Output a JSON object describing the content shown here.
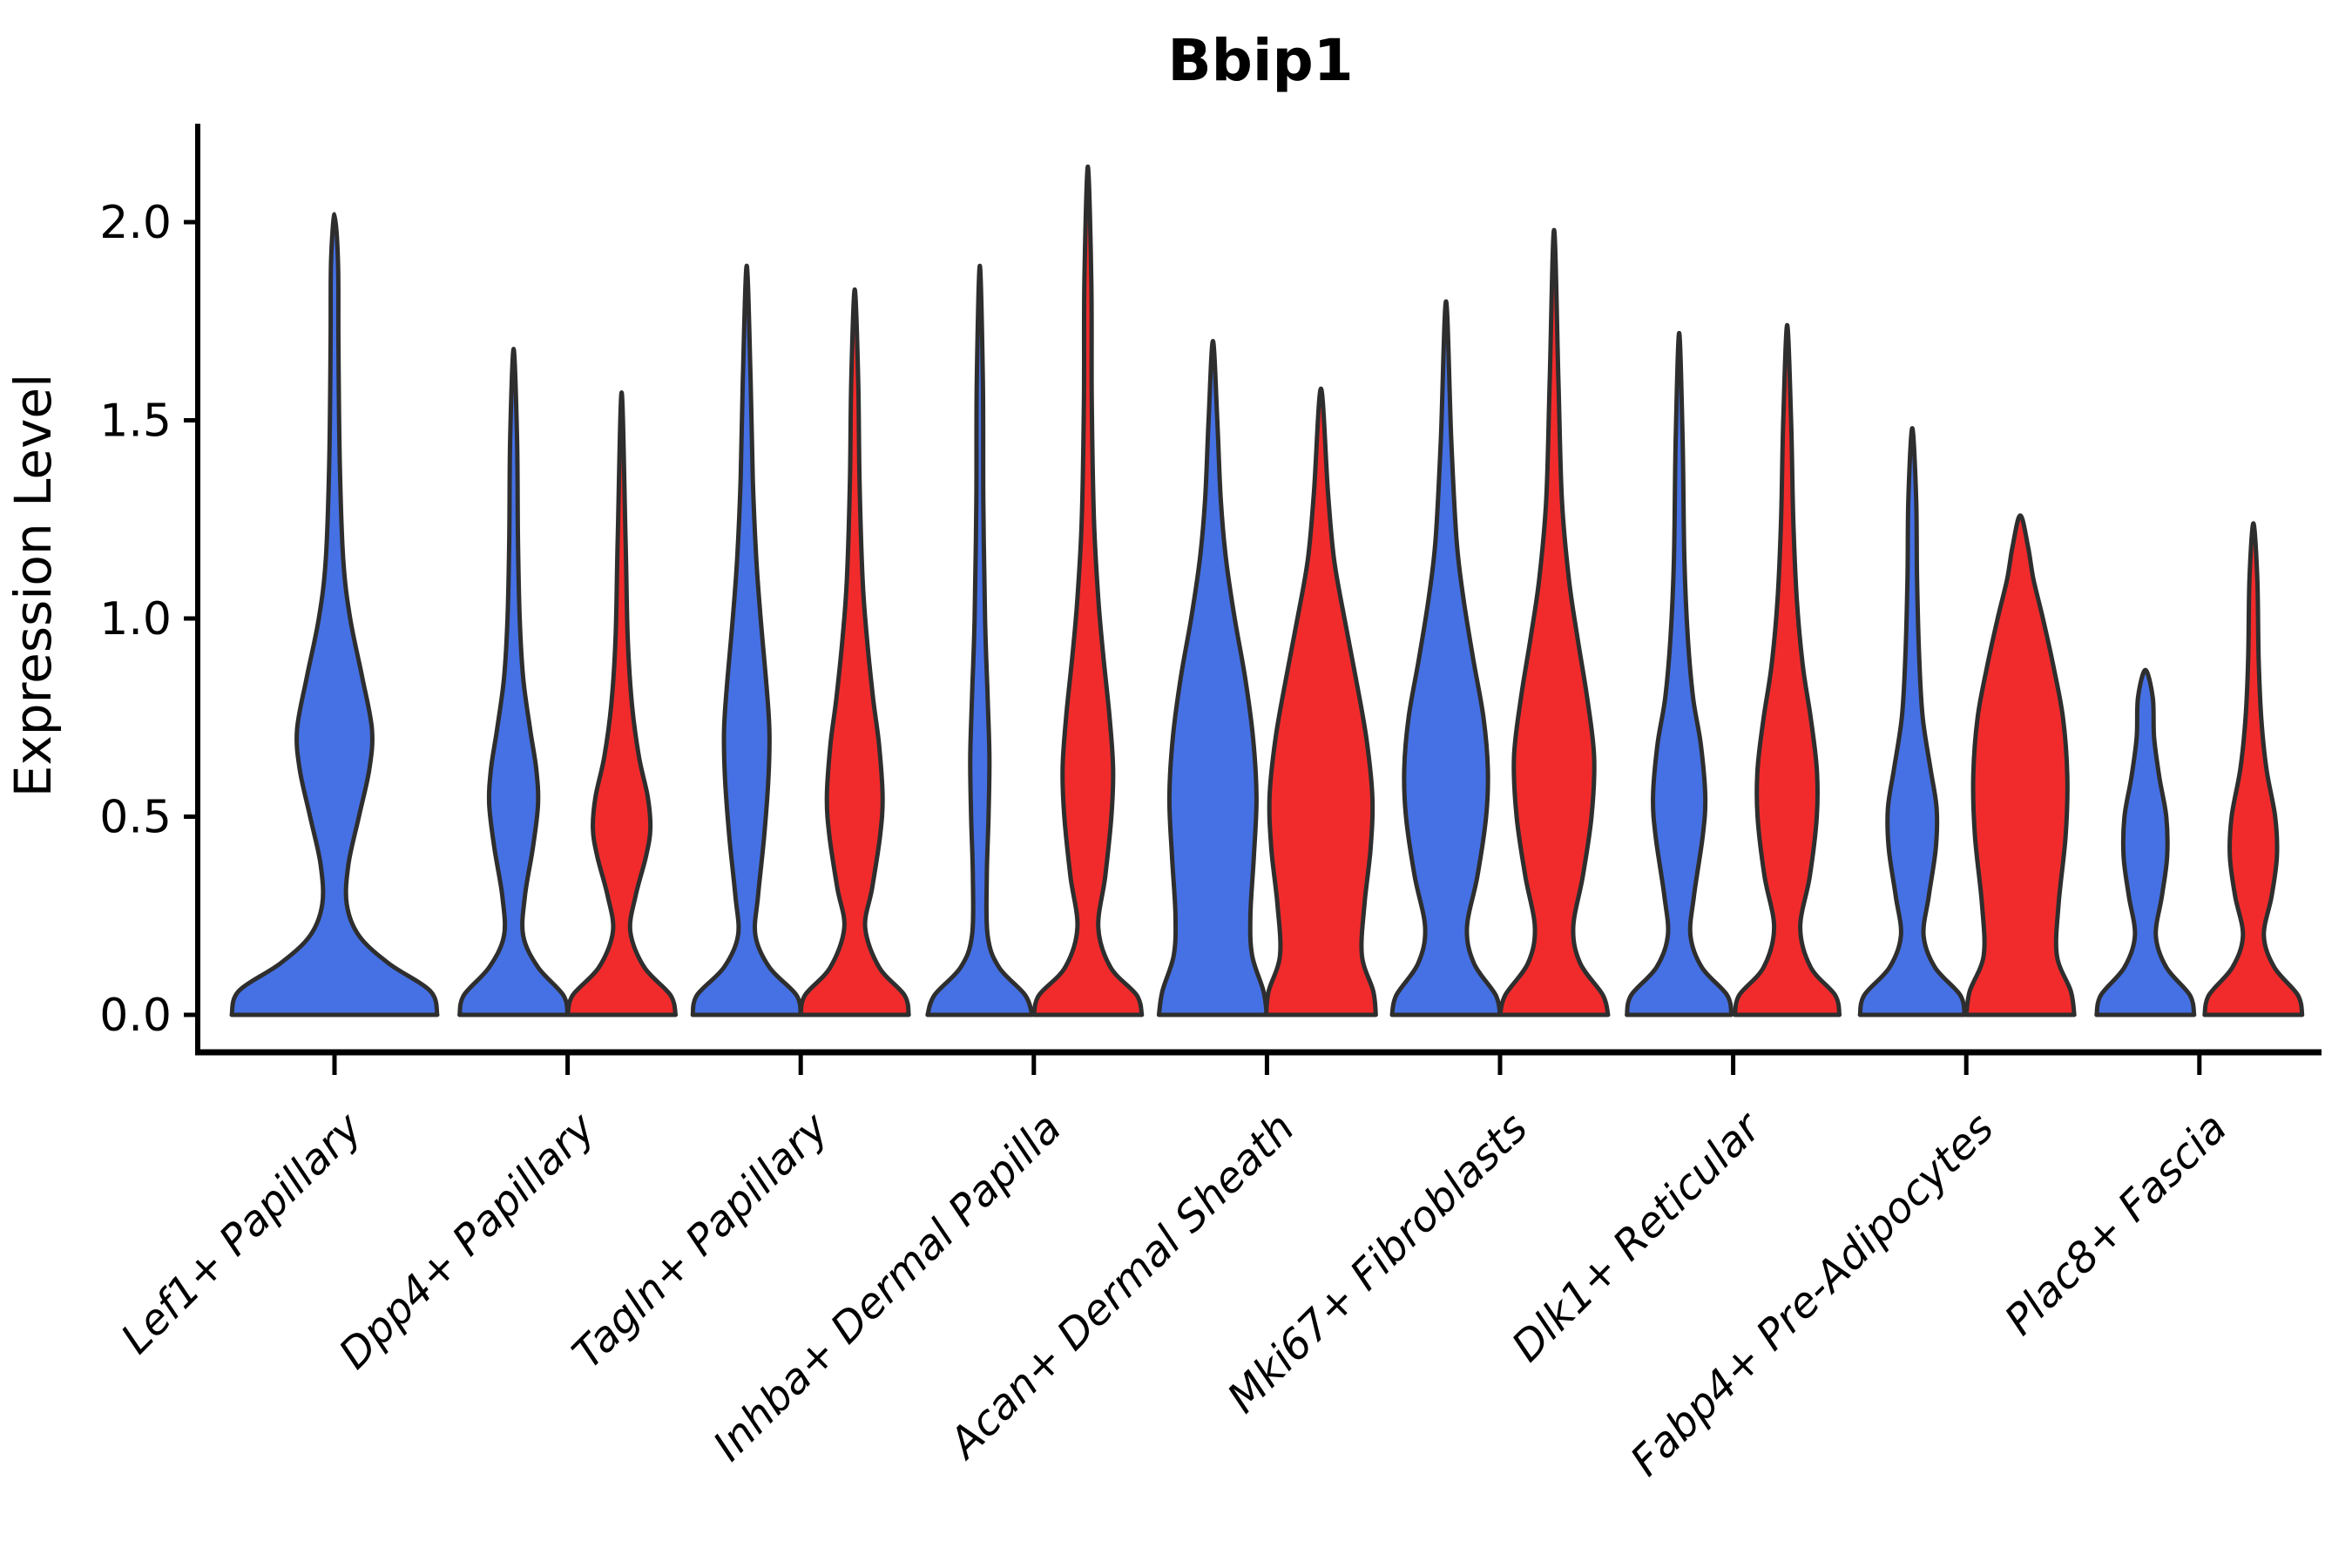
{
  "title": "Bbip1",
  "axes": {
    "ylabel": "Expression Level",
    "ytick_labels": [
      "0.0",
      "0.5",
      "1.0",
      "1.5",
      "2.0"
    ]
  },
  "chart_data": {
    "type": "violin",
    "title": "Bbip1",
    "xlabel": "",
    "ylabel": "Expression Level",
    "ylim": [
      -0.09,
      2.25
    ],
    "yticks": [
      0.0,
      0.5,
      1.0,
      1.5,
      2.0
    ],
    "grid": false,
    "legend": "none (colors encode two sample groups: blue vs red)",
    "categories": [
      "Lef1+ Papillary",
      "Dpp4+ Papillary",
      "Tagln+ Papillary",
      "Inhba+ Dermal Papilla",
      "Acan+ Dermal Sheath",
      "Mki67+ Fibroblasts",
      "Dlk1+ Reticular",
      "Fabp4+ Pre-Adipocytes",
      "Plac8+ Fascia"
    ],
    "series_colors": {
      "blue": "#4671e4",
      "red": "#f12b2c"
    },
    "outline_color": "#2e2e2e",
    "groups": [
      {
        "category": "Lef1+ Papillary",
        "violins": [
          {
            "series": "blue",
            "peak": 2.02,
            "profile": [
              [
                0,
                118
              ],
              [
                0.06,
                110
              ],
              [
                0.13,
                62
              ],
              [
                0.2,
                28
              ],
              [
                0.28,
                14
              ],
              [
                0.38,
                16
              ],
              [
                0.5,
                28
              ],
              [
                0.62,
                40
              ],
              [
                0.72,
                43
              ],
              [
                0.85,
                32
              ],
              [
                1.0,
                18
              ],
              [
                1.15,
                10
              ],
              [
                1.4,
                6
              ],
              [
                1.7,
                4.5
              ],
              [
                1.9,
                4
              ],
              [
                2.02,
                0
              ]
            ]
          }
        ]
      },
      {
        "category": "Dpp4+ Papillary",
        "violins": [
          {
            "series": "blue",
            "peak": 1.68,
            "profile": [
              [
                0,
                62
              ],
              [
                0.05,
                57
              ],
              [
                0.12,
                28
              ],
              [
                0.2,
                11
              ],
              [
                0.3,
                13
              ],
              [
                0.42,
                22
              ],
              [
                0.53,
                28
              ],
              [
                0.62,
                26
              ],
              [
                0.72,
                19
              ],
              [
                0.85,
                11
              ],
              [
                1.0,
                7
              ],
              [
                1.2,
                5
              ],
              [
                1.45,
                4
              ],
              [
                1.68,
                0
              ]
            ]
          },
          {
            "series": "red",
            "peak": 1.57,
            "profile": [
              [
                0,
                62
              ],
              [
                0.05,
                56
              ],
              [
                0.12,
                26
              ],
              [
                0.21,
                10
              ],
              [
                0.3,
                16
              ],
              [
                0.4,
                28
              ],
              [
                0.47,
                33
              ],
              [
                0.55,
                30
              ],
              [
                0.65,
                20
              ],
              [
                0.78,
                12
              ],
              [
                0.95,
                7
              ],
              [
                1.2,
                4.5
              ],
              [
                1.57,
                0
              ]
            ]
          }
        ]
      },
      {
        "category": "Tagln+ Papillary",
        "violins": [
          {
            "series": "blue",
            "peak": 1.89,
            "profile": [
              [
                0,
                62
              ],
              [
                0.05,
                57
              ],
              [
                0.12,
                26
              ],
              [
                0.2,
                10
              ],
              [
                0.3,
                13
              ],
              [
                0.45,
                20
              ],
              [
                0.6,
                25
              ],
              [
                0.72,
                26
              ],
              [
                0.85,
                22
              ],
              [
                1.0,
                16
              ],
              [
                1.15,
                11
              ],
              [
                1.35,
                7
              ],
              [
                1.6,
                4.5
              ],
              [
                1.89,
                0
              ]
            ]
          },
          {
            "series": "red",
            "peak": 1.83,
            "profile": [
              [
                0,
                62
              ],
              [
                0.05,
                57
              ],
              [
                0.12,
                28
              ],
              [
                0.22,
                12
              ],
              [
                0.32,
                20
              ],
              [
                0.45,
                29
              ],
              [
                0.55,
                32
              ],
              [
                0.68,
                28
              ],
              [
                0.8,
                21
              ],
              [
                0.95,
                14
              ],
              [
                1.1,
                9
              ],
              [
                1.35,
                5.5
              ],
              [
                1.6,
                4
              ],
              [
                1.83,
                0
              ]
            ]
          }
        ]
      },
      {
        "category": "Inhba+ Dermal Papilla",
        "violins": [
          {
            "series": "blue",
            "peak": 1.89,
            "profile": [
              [
                0,
                60
              ],
              [
                0.05,
                52
              ],
              [
                0.12,
                22
              ],
              [
                0.2,
                9
              ],
              [
                0.35,
                8
              ],
              [
                0.5,
                10
              ],
              [
                0.65,
                11
              ],
              [
                0.8,
                9
              ],
              [
                1.0,
                6
              ],
              [
                1.3,
                4
              ],
              [
                1.6,
                3.5
              ],
              [
                1.89,
                0
              ]
            ]
          },
          {
            "series": "red",
            "peak": 2.14,
            "profile": [
              [
                0,
                62
              ],
              [
                0.05,
                56
              ],
              [
                0.12,
                26
              ],
              [
                0.22,
                12
              ],
              [
                0.35,
                20
              ],
              [
                0.5,
                27
              ],
              [
                0.62,
                29
              ],
              [
                0.75,
                25
              ],
              [
                0.9,
                18
              ],
              [
                1.05,
                12
              ],
              [
                1.25,
                7
              ],
              [
                1.55,
                4.5
              ],
              [
                1.85,
                4
              ],
              [
                2.14,
                0
              ]
            ]
          }
        ]
      },
      {
        "category": "Acan+ Dermal Sheath",
        "violins": [
          {
            "series": "blue",
            "peak": 1.7,
            "profile": [
              [
                0,
                62
              ],
              [
                0.06,
                58
              ],
              [
                0.15,
                45
              ],
              [
                0.25,
                43
              ],
              [
                0.4,
                47
              ],
              [
                0.55,
                50
              ],
              [
                0.7,
                46
              ],
              [
                0.85,
                37
              ],
              [
                1.0,
                25
              ],
              [
                1.15,
                15
              ],
              [
                1.3,
                9
              ],
              [
                1.5,
                5
              ],
              [
                1.7,
                0
              ]
            ]
          },
          {
            "series": "red",
            "peak": 1.58,
            "profile": [
              [
                0,
                63
              ],
              [
                0.06,
                60
              ],
              [
                0.15,
                47
              ],
              [
                0.28,
                50
              ],
              [
                0.42,
                57
              ],
              [
                0.55,
                59
              ],
              [
                0.7,
                52
              ],
              [
                0.85,
                40
              ],
              [
                1.0,
                27
              ],
              [
                1.15,
                15
              ],
              [
                1.32,
                8
              ],
              [
                1.58,
                0
              ]
            ]
          }
        ]
      },
      {
        "category": "Mki67+ Fibroblasts",
        "violins": [
          {
            "series": "blue",
            "peak": 1.8,
            "profile": [
              [
                0,
                62
              ],
              [
                0.05,
                57
              ],
              [
                0.13,
                32
              ],
              [
                0.22,
                24
              ],
              [
                0.35,
                36
              ],
              [
                0.5,
                46
              ],
              [
                0.62,
                48
              ],
              [
                0.75,
                43
              ],
              [
                0.9,
                31
              ],
              [
                1.05,
                20
              ],
              [
                1.2,
                12
              ],
              [
                1.45,
                6
              ],
              [
                1.8,
                0
              ]
            ]
          },
          {
            "series": "red",
            "peak": 1.98,
            "profile": [
              [
                0,
                62
              ],
              [
                0.05,
                56
              ],
              [
                0.13,
                30
              ],
              [
                0.22,
                22
              ],
              [
                0.35,
                33
              ],
              [
                0.5,
                43
              ],
              [
                0.65,
                46
              ],
              [
                0.8,
                38
              ],
              [
                0.95,
                27
              ],
              [
                1.1,
                17
              ],
              [
                1.3,
                9
              ],
              [
                1.6,
                5
              ],
              [
                1.98,
                0
              ]
            ]
          }
        ]
      },
      {
        "category": "Dlk1+ Reticular",
        "violins": [
          {
            "series": "blue",
            "peak": 1.72,
            "profile": [
              [
                0,
                60
              ],
              [
                0.05,
                55
              ],
              [
                0.12,
                26
              ],
              [
                0.2,
                13
              ],
              [
                0.3,
                17
              ],
              [
                0.45,
                27
              ],
              [
                0.55,
                30
              ],
              [
                0.68,
                25
              ],
              [
                0.8,
                16
              ],
              [
                0.95,
                10
              ],
              [
                1.15,
                6
              ],
              [
                1.45,
                4
              ],
              [
                1.72,
                0
              ]
            ]
          },
          {
            "series": "red",
            "peak": 1.74,
            "profile": [
              [
                0,
                60
              ],
              [
                0.05,
                55
              ],
              [
                0.12,
                27
              ],
              [
                0.22,
                15
              ],
              [
                0.35,
                26
              ],
              [
                0.5,
                34
              ],
              [
                0.62,
                34
              ],
              [
                0.75,
                27
              ],
              [
                0.88,
                18
              ],
              [
                1.05,
                11
              ],
              [
                1.25,
                7
              ],
              [
                1.5,
                4.5
              ],
              [
                1.74,
                0
              ]
            ]
          }
        ]
      },
      {
        "category": "Fabp4+ Pre-Adipocytes",
        "violins": [
          {
            "series": "blue",
            "peak": 1.48,
            "profile": [
              [
                0,
                60
              ],
              [
                0.05,
                55
              ],
              [
                0.12,
                26
              ],
              [
                0.2,
                13
              ],
              [
                0.3,
                19
              ],
              [
                0.42,
                27
              ],
              [
                0.52,
                28
              ],
              [
                0.62,
                21
              ],
              [
                0.75,
                12
              ],
              [
                0.9,
                8
              ],
              [
                1.1,
                5.5
              ],
              [
                1.3,
                4.5
              ],
              [
                1.48,
                0
              ]
            ]
          },
          {
            "series": "red",
            "peak": 1.26,
            "profile": [
              [
                0,
                62
              ],
              [
                0.06,
                58
              ],
              [
                0.15,
                42
              ],
              [
                0.28,
                44
              ],
              [
                0.45,
                52
              ],
              [
                0.6,
                54
              ],
              [
                0.75,
                49
              ],
              [
                0.88,
                38
              ],
              [
                1.0,
                26
              ],
              [
                1.1,
                15
              ],
              [
                1.18,
                9
              ],
              [
                1.26,
                0
              ]
            ]
          }
        ]
      },
      {
        "category": "Plac8+ Fascia",
        "violins": [
          {
            "series": "blue",
            "peak": 0.87,
            "profile": [
              [
                0,
                56
              ],
              [
                0.05,
                51
              ],
              [
                0.12,
                24
              ],
              [
                0.2,
                12
              ],
              [
                0.3,
                19
              ],
              [
                0.4,
                25
              ],
              [
                0.5,
                24
              ],
              [
                0.6,
                16
              ],
              [
                0.7,
                10
              ],
              [
                0.8,
                8.5
              ],
              [
                0.87,
                0
              ]
            ]
          },
          {
            "series": "red",
            "peak": 1.24,
            "profile": [
              [
                0,
                56
              ],
              [
                0.05,
                51
              ],
              [
                0.12,
                24
              ],
              [
                0.2,
                12
              ],
              [
                0.3,
                21
              ],
              [
                0.4,
                27
              ],
              [
                0.5,
                25
              ],
              [
                0.62,
                15
              ],
              [
                0.75,
                9
              ],
              [
                0.9,
                6
              ],
              [
                1.1,
                4.5
              ],
              [
                1.24,
                0
              ]
            ]
          }
        ]
      }
    ]
  }
}
